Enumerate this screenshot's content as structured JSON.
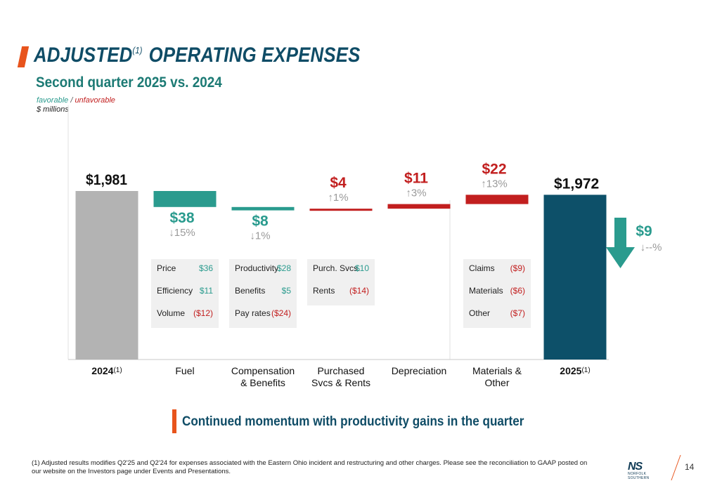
{
  "header": {
    "title": "ADJUSTED",
    "title_sup": "(1)",
    "title_rest": " OPERATING EXPENSES",
    "subtitle": "Second quarter 2025 vs. 2024"
  },
  "legend": {
    "favorable": "favorable",
    "separator": " / ",
    "unfavorable": "unfavorable",
    "units": "$ millions"
  },
  "colors": {
    "base_2024": "#b3b3b3",
    "base_2025": "#0d5069",
    "favorable": "#2a9b8e",
    "unfavorable": "#c21f1f",
    "title": "#0f4c66",
    "accent": "#e8541c"
  },
  "chart_data": {
    "type": "bar",
    "subtype": "waterfall",
    "units": "$ millions",
    "categories": [
      "2024",
      "Fuel",
      "Compensation & Benefits",
      "Purchased Svcs & Rents",
      "Depreciation",
      "Materials & Other",
      "2025"
    ],
    "category_labels": [
      {
        "lines": [
          "2024"
        ],
        "sup": "(1)"
      },
      {
        "lines": [
          "Fuel"
        ],
        "sup": ""
      },
      {
        "lines": [
          "Compensation",
          "& Benefits"
        ],
        "sup": ""
      },
      {
        "lines": [
          "Purchased",
          "Svcs & Rents"
        ],
        "sup": ""
      },
      {
        "lines": [
          "Depreciation"
        ],
        "sup": ""
      },
      {
        "lines": [
          "Materials &",
          "Other"
        ],
        "sup": ""
      },
      {
        "lines": [
          "2025"
        ],
        "sup": "(1)"
      }
    ],
    "start": {
      "label": "2024",
      "value": 1981,
      "value_label": "$1,981"
    },
    "end": {
      "label": "2025",
      "value": 1972,
      "value_label": "$1,972"
    },
    "steps": [
      {
        "category": "Fuel",
        "change": -38,
        "value_label": "$38",
        "pct_label": "↓15%",
        "direction": "favorable"
      },
      {
        "category": "Compensation & Benefits",
        "change": -8,
        "value_label": "$8",
        "pct_label": "↓1%",
        "direction": "favorable"
      },
      {
        "category": "Purchased Svcs & Rents",
        "change": 4,
        "value_label": "$4",
        "pct_label": "↑1%",
        "direction": "unfavorable"
      },
      {
        "category": "Depreciation",
        "change": 11,
        "value_label": "$11",
        "pct_label": "↑3%",
        "direction": "unfavorable"
      },
      {
        "category": "Materials & Other",
        "change": 22,
        "value_label": "$22",
        "pct_label": "↑13%",
        "direction": "unfavorable"
      }
    ],
    "total_change": {
      "value": -9,
      "value_label": "$9",
      "pct_label": "↓--%",
      "direction": "favorable"
    }
  },
  "drivers": [
    {
      "category": "Fuel",
      "items": [
        {
          "label": "Price",
          "value": "$36",
          "status": "favorable"
        },
        {
          "label": "Efficiency",
          "value": "$11",
          "status": "favorable"
        },
        {
          "label": "Volume",
          "value": "($12)",
          "status": "unfavorable"
        }
      ]
    },
    {
      "category": "Compensation & Benefits",
      "items": [
        {
          "label": "Productivity",
          "value": "$28",
          "status": "favorable"
        },
        {
          "label": "Benefits",
          "value": "$5",
          "status": "favorable"
        },
        {
          "label": "Pay rates",
          "value": "($24)",
          "status": "unfavorable"
        }
      ]
    },
    {
      "category": "Purchased Svcs & Rents",
      "items": [
        {
          "label": "Purch. Svcs.",
          "value": "$10",
          "status": "favorable"
        },
        {
          "label": "Rents",
          "value": "($14)",
          "status": "unfavorable"
        }
      ]
    },
    {
      "category": "Materials & Other",
      "items": [
        {
          "label": "Claims",
          "value": "($9)",
          "status": "unfavorable"
        },
        {
          "label": "Materials",
          "value": "($6)",
          "status": "unfavorable"
        },
        {
          "label": "Other",
          "value": "($7)",
          "status": "unfavorable"
        }
      ]
    }
  ],
  "callout": "Continued momentum with productivity gains in the quarter",
  "footnote": "(1)  Adjusted results modifies Q2'25 and Q2'24 for expenses associated with the Eastern Ohio incident and restructuring and other charges. Please see the reconciliation to GAAP posted on our website on the Investors page under Events and Presentations.",
  "logo": {
    "mark": "NS",
    "text": "NORFOLK SOUTHERN"
  },
  "page_number": "14"
}
